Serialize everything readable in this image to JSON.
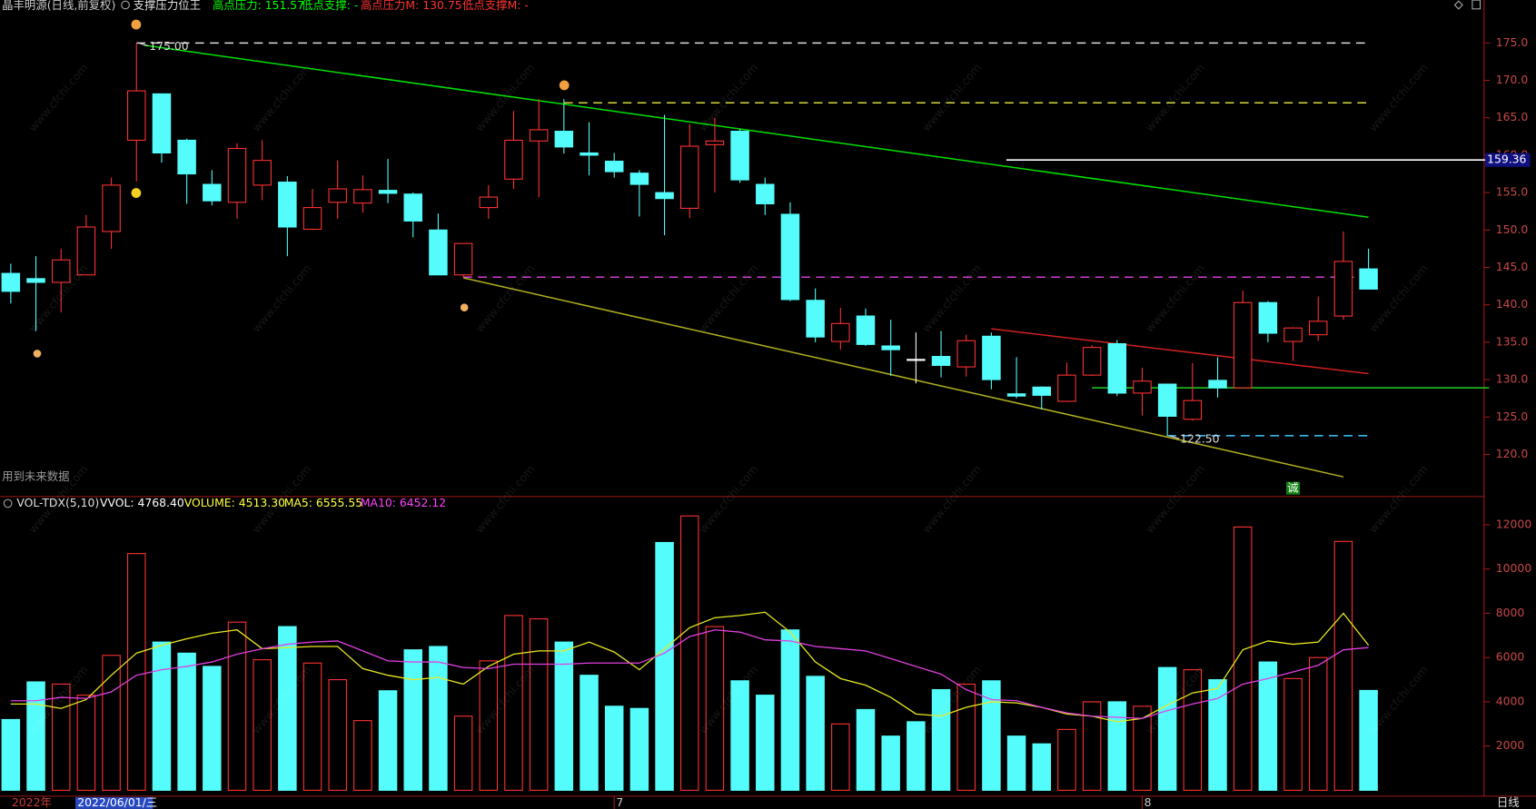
{
  "chart_data": [
    {
      "type": "candlestick",
      "title": "晶丰明源(日线,前复权)",
      "subtitle": "支撑压力位王",
      "indicators": [
        {
          "text": "高点压力: 151.57",
          "color": "#00ff00"
        },
        {
          "text": "低点支撑: -",
          "color": "#00ff00"
        },
        {
          "text": "高点压力M: 130.75",
          "color": "#ff3232"
        },
        {
          "text": "低点支撑M: -",
          "color": "#ff3232"
        }
      ],
      "categories": [
        "2022年",
        null,
        null,
        null,
        null,
        null,
        null,
        null,
        null,
        null,
        null,
        null,
        null,
        null,
        null,
        null,
        null,
        null,
        null,
        null,
        null,
        null,
        null,
        null,
        "7",
        null,
        null,
        null,
        null,
        null,
        null,
        null,
        null,
        null,
        null,
        null,
        null,
        null,
        null,
        null,
        null,
        null,
        null,
        null,
        null,
        "8",
        null,
        null,
        null,
        null,
        null,
        null,
        null,
        null,
        null
      ],
      "cursor_date": "2022/06/01/三",
      "open": [
        144.2,
        143.5,
        143.0,
        144.0,
        149.8,
        162.0,
        168.2,
        162.0,
        156.1,
        153.7,
        156.0,
        156.4,
        150.1,
        153.7,
        153.6,
        155.3,
        154.8,
        150.0,
        144.0,
        153.0,
        156.8,
        161.9,
        163.2,
        160.3,
        159.2,
        157.6,
        155.0,
        152.9,
        161.4,
        163.2,
        156.1,
        152.1,
        140.6,
        135.1,
        138.5,
        134.5,
        132.7,
        133.1,
        131.7,
        135.8,
        128.1,
        129.0,
        127.1,
        130.6,
        134.8,
        128.2,
        129.4,
        124.7,
        129.9,
        128.9,
        140.3,
        135.1,
        136.0,
        138.5,
        144.8
      ],
      "high": [
        145.5,
        146.5,
        147.5,
        152.0,
        157.0,
        175.0,
        168.2,
        162.2,
        158.0,
        161.6,
        162.0,
        157.2,
        155.5,
        159.3,
        157.3,
        159.5,
        155.0,
        152.2,
        148.2,
        156.0,
        165.9,
        167.5,
        167.5,
        164.4,
        160.3,
        158.0,
        165.4,
        164.2,
        165.0,
        163.5,
        157.0,
        153.7,
        142.2,
        139.6,
        139.5,
        138.0,
        136.3,
        136.5,
        136.0,
        136.3,
        133.0,
        129.1,
        132.3,
        134.6,
        135.3,
        131.6,
        129.4,
        132.2,
        133.0,
        141.9,
        140.5,
        137.0,
        141.1,
        149.8,
        147.5
      ],
      "low": [
        140.2,
        136.5,
        139.0,
        144.0,
        147.5,
        156.5,
        159.0,
        153.5,
        153.3,
        151.5,
        154.0,
        146.5,
        150.0,
        151.5,
        152.3,
        153.6,
        149.0,
        144.0,
        143.7,
        151.5,
        155.5,
        154.4,
        160.2,
        157.3,
        157.0,
        151.8,
        149.3,
        151.6,
        155.0,
        156.3,
        152.0,
        140.5,
        135.0,
        134.0,
        134.5,
        130.5,
        129.5,
        130.3,
        130.4,
        128.7,
        127.5,
        126.0,
        127.0,
        130.5,
        127.8,
        125.2,
        122.5,
        124.5,
        127.6,
        128.9,
        135.0,
        132.5,
        135.2,
        138.0,
        142.1
      ],
      "close": [
        141.8,
        143.0,
        146.0,
        150.4,
        156.0,
        168.6,
        160.3,
        157.5,
        153.9,
        160.9,
        159.3,
        150.4,
        153.0,
        155.5,
        155.4,
        154.9,
        151.2,
        144.0,
        148.2,
        154.4,
        162.0,
        163.4,
        161.1,
        160.0,
        157.8,
        156.1,
        154.2,
        161.2,
        161.9,
        156.7,
        153.5,
        140.7,
        135.7,
        137.5,
        134.7,
        134.0,
        132.7,
        131.9,
        135.2,
        130.0,
        127.8,
        127.9,
        130.6,
        134.3,
        128.2,
        129.8,
        125.1,
        127.2,
        128.9,
        140.3,
        136.2,
        136.9,
        137.8,
        145.8,
        142.1
      ],
      "up_color": "#ff3232",
      "down_color": "#54fcfc",
      "flat_color": "#ffffff",
      "ylim": [
        114.5,
        178.9
      ],
      "yticks": [
        {
          "value": 120,
          "label": "120.0"
        },
        {
          "value": 125,
          "label": "125.0"
        },
        {
          "value": 130,
          "label": "130.0"
        },
        {
          "value": 135,
          "label": "135.0"
        },
        {
          "value": 140,
          "label": "140.0"
        },
        {
          "value": 145,
          "label": "145.0"
        },
        {
          "value": 150,
          "label": "150.0"
        },
        {
          "value": 155,
          "label": "155.0"
        },
        {
          "value": 160,
          "label": "160.0"
        },
        {
          "value": 165,
          "label": "165.0"
        },
        {
          "value": 170,
          "label": "170.0"
        },
        {
          "value": 175,
          "label": "175.0"
        }
      ],
      "lines": [
        {
          "color": "#dddddd",
          "dash": true,
          "x": [
            5,
            54
          ],
          "values": [
            175,
            175
          ]
        },
        {
          "color": "#d8d840",
          "dash": true,
          "x": [
            22,
            54
          ],
          "values": [
            167,
            167
          ]
        },
        {
          "color": "#d040d0",
          "dash": true,
          "x": [
            18,
            54
          ],
          "values": [
            143.7,
            143.7
          ]
        },
        {
          "color": "#40c8ff",
          "dash": true,
          "x": [
            46,
            54
          ],
          "values": [
            122.5,
            122.5
          ]
        },
        {
          "color": "#ffffff",
          "dash": false,
          "x": [
            39.6,
            58.8
          ],
          "values": [
            159.36,
            159.36
          ]
        },
        {
          "color": "#20d020",
          "dash": false,
          "x": [
            43,
            58.8
          ],
          "values": [
            128.9,
            128.9
          ]
        },
        {
          "color": "#00e000",
          "dash": false,
          "x": [
            5.3,
            54
          ],
          "values": [
            174.7,
            151.7
          ]
        },
        {
          "color": "#b0b020",
          "dash": false,
          "x": [
            18,
            53
          ],
          "values": [
            143.6,
            117.0
          ]
        },
        {
          "color": "#d02020",
          "dash": false,
          "x": [
            39,
            54
          ],
          "values": [
            136.8,
            130.8
          ]
        }
      ],
      "annotations": [
        {
          "label": "175.00",
          "value": 175,
          "x": 5
        },
        {
          "label": "122.50",
          "value": 122.5,
          "x": 46
        }
      ],
      "price_marker": {
        "label": "159.36",
        "value": 159.36
      },
      "note": "用到未来数据",
      "badge": "诚"
    },
    {
      "type": "volume",
      "title": "VOL-TDX(5,10)",
      "indicators": [
        {
          "text": "VVOL: 4768.40",
          "color": "#ffffff"
        },
        {
          "text": "VOLUME: 4513.30",
          "color": "#ffff40"
        },
        {
          "text": "MA5: 6555.55",
          "color": "#ffff40"
        },
        {
          "text": "MA10: 6452.12",
          "color": "#ff40ff"
        }
      ],
      "values": [
        3200,
        4900,
        4800,
        4300,
        6100,
        10700,
        6700,
        6200,
        5600,
        7600,
        5900,
        7400,
        5750,
        5000,
        3150,
        4500,
        6350,
        6500,
        3350,
        5850,
        7900,
        7750,
        6700,
        5200,
        3800,
        3700,
        11200,
        12400,
        7400,
        4950,
        4300,
        7250,
        5150,
        3000,
        3650,
        2450,
        3100,
        4550,
        4800,
        4950,
        2450,
        2100,
        2750,
        4000,
        4000,
        3800,
        5550,
        5450,
        5000,
        11900,
        5800,
        5050,
        6000,
        11250,
        4513.3
      ],
      "series": [
        {
          "color": "#e8e820",
          "values": [
            3900,
            3900,
            3700,
            4100,
            5200,
            6200,
            6550,
            6850,
            7100,
            7250,
            6400,
            6450,
            6500,
            6500,
            5500,
            5200,
            5000,
            5100,
            4800,
            5600,
            6150,
            6300,
            6300,
            6700,
            6250,
            5450,
            6400,
            7350,
            7800,
            7900,
            8050,
            7150,
            5800,
            5050,
            4750,
            4200,
            3450,
            3350,
            3750,
            4000,
            3950,
            3750,
            3450,
            3350,
            3100,
            3250,
            3850,
            4400,
            4600,
            6350,
            6750,
            6600,
            6700,
            8000,
            6555.55
          ]
        },
        {
          "color": "#e040e0",
          "values": [
            4050,
            4050,
            4200,
            4150,
            4450,
            5200,
            5450,
            5600,
            5800,
            6150,
            6400,
            6600,
            6700,
            6750,
            6300,
            5850,
            5800,
            5800,
            5550,
            5500,
            5700,
            5700,
            5700,
            5750,
            5750,
            5750,
            6200,
            6950,
            7250,
            7150,
            6800,
            6750,
            6500,
            6400,
            6300,
            5950,
            5600,
            5250,
            4550,
            4100,
            4050,
            3750,
            3500,
            3350,
            3300,
            3250,
            3600,
            3900,
            4150,
            4800,
            5050,
            5350,
            5650,
            6350,
            6452.12
          ]
        }
      ],
      "ylim": [
        0,
        12790
      ],
      "yticks": [
        2000,
        4000,
        6000,
        8000,
        10000,
        12000
      ],
      "period": "日线"
    },
    {
      "type": "watermark",
      "text": "www.cfchi.com"
    }
  ]
}
